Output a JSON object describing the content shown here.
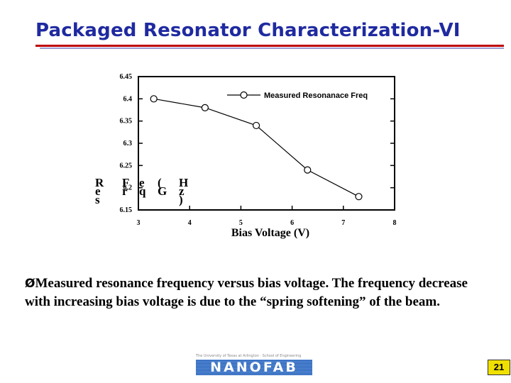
{
  "slide": {
    "title": "Packaged Resonator Characterization-VI",
    "bullet_arrow": "Ø",
    "bullet_text": "Measured resonance frequency versus bias voltage. The frequency decrease with increasing bias voltage is due to the “spring softening” of the beam.",
    "page_number": "21",
    "logo": {
      "tagline": "The University of Texas at Arlington · School of Engineering",
      "word": "NANOFAB"
    }
  },
  "chart_data": {
    "type": "line",
    "xlabel": "Bias Voltage (V)",
    "ylabel_columns": [
      "R",
      "e",
      "s",
      "F",
      "r",
      "e",
      "q",
      "(",
      "G",
      "H",
      "z",
      ")"
    ],
    "xlim": [
      3,
      8
    ],
    "ylim": [
      6.15,
      6.45
    ],
    "x_ticks": [
      3,
      4,
      5,
      6,
      7,
      8
    ],
    "y_ticks": [
      6.15,
      6.2,
      6.25,
      6.3,
      6.35,
      6.4,
      6.45
    ],
    "grid": false,
    "legend_position": "top-right",
    "series": [
      {
        "name": "Measured Resonanace Freq",
        "marker": "open-circle",
        "color": "#000000",
        "x": [
          3.3,
          4.3,
          5.3,
          6.3,
          7.3
        ],
        "y": [
          6.4,
          6.38,
          6.34,
          6.24,
          6.18
        ]
      }
    ]
  }
}
